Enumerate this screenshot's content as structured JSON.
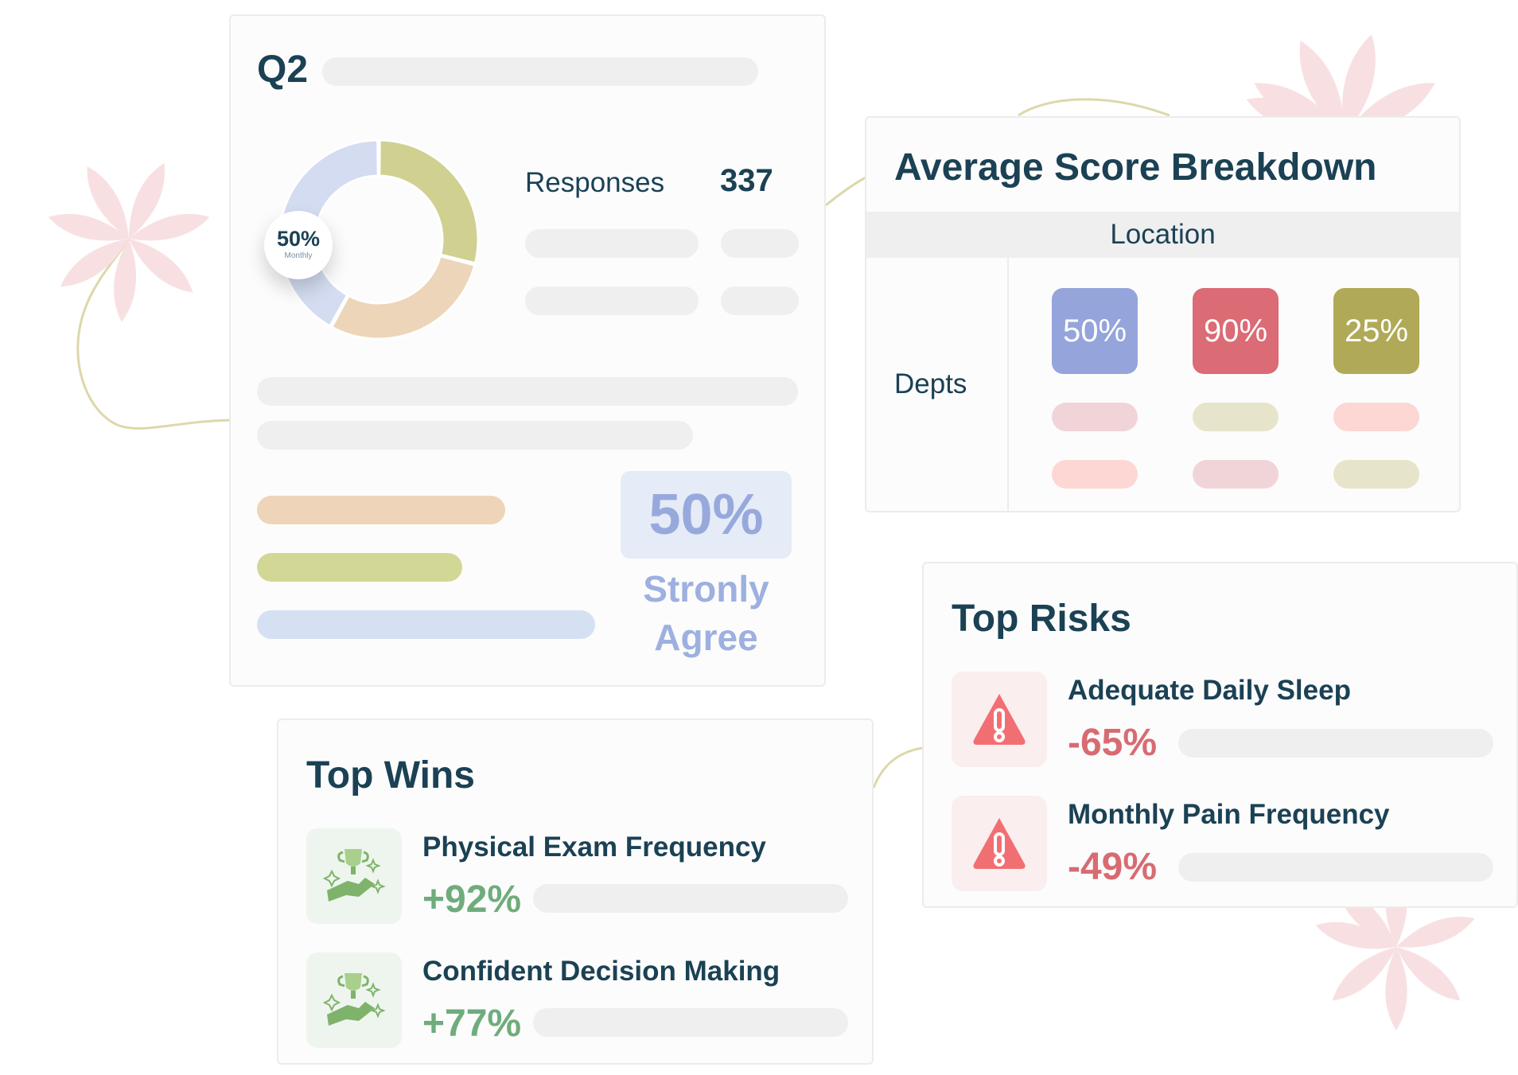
{
  "summary_card": {
    "title": "Q2",
    "donut": {
      "badge_value": "50%",
      "badge_subtext": "Monthly",
      "segments": [
        {
          "color": "#d0d091",
          "share": 0.29
        },
        {
          "color": "#edd5b9",
          "share": 0.29
        },
        {
          "color": "#d4dcf1",
          "share": 0.42
        }
      ]
    },
    "responses_label": "Responses",
    "responses_value": "337",
    "agree_value": "50%",
    "agree_label_line1": "Stronly",
    "agree_label_line2": "Agree",
    "bars": [
      {
        "color": "#eed4b8"
      },
      {
        "color": "#d3d796"
      },
      {
        "color": "#d6e0f3"
      }
    ]
  },
  "score_breakdown": {
    "title": "Average Score Breakdown",
    "column_header": "Location",
    "row_label": "Depts",
    "scores": [
      {
        "value": "50%",
        "color": "#95a4db"
      },
      {
        "value": "90%",
        "color": "#db6b74"
      },
      {
        "value": "25%",
        "color": "#b0a957"
      }
    ]
  },
  "top_risks": {
    "title": "Top Risks",
    "items": [
      {
        "name": "Adequate Daily Sleep",
        "value": "-65%",
        "icon": "warning-triangle-icon"
      },
      {
        "name": "Monthly Pain Frequency",
        "value": "-49%",
        "icon": "warning-triangle-icon"
      }
    ]
  },
  "top_wins": {
    "title": "Top Wins",
    "items": [
      {
        "name": "Physical Exam Frequency",
        "value": "+92%",
        "icon": "trophy-handshake-icon"
      },
      {
        "name": "Confident Decision Making",
        "value": "+77%",
        "icon": "trophy-handshake-icon"
      }
    ]
  },
  "colors": {
    "text_primary": "#1b4154",
    "risk_red": "#d86b72",
    "win_green": "#6fac7c",
    "flower_pink": "#f8e0e2",
    "connector_line": "#ddd8a9"
  }
}
